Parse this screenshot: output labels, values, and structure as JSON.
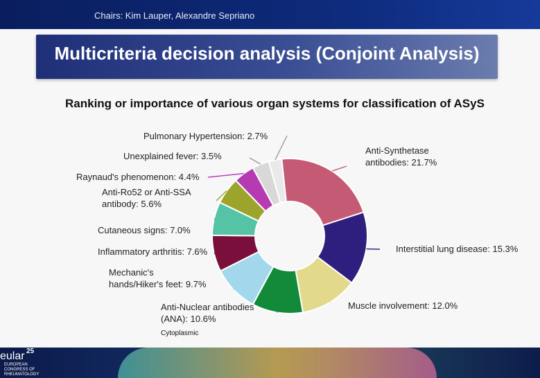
{
  "header": {
    "chairs": "Chairs: Kim Lauper, Alexandre Sepriano"
  },
  "slide": {
    "title": "Multicriteria decision analysis (Conjoint Analysis)",
    "subtitle": "Ranking or importance of various organ systems for classification of ASyS",
    "note": "Cytoplasmic"
  },
  "chart_data": {
    "type": "pie",
    "donut": true,
    "title": "Ranking or importance of various organ systems for classification of ASyS",
    "unit": "%",
    "slices": [
      {
        "label_lines": [
          "Anti-Synthetase",
          "antibodies: 21.7%"
        ],
        "value": 21.7,
        "color": "#c45a73"
      },
      {
        "label_lines": [
          "Interstitial lung disease: 15.3%"
        ],
        "value": 15.3,
        "color": "#2e1f7e"
      },
      {
        "label_lines": [
          "Muscle involvement: 12.0%"
        ],
        "value": 12.0,
        "color": "#e3d98a"
      },
      {
        "label_lines": [
          "Anti-Nuclear antibodies",
          "(ANA): 10.6%"
        ],
        "value": 10.6,
        "color": "#128a3a"
      },
      {
        "label_lines": [
          "Mechanic's",
          "hands/Hiker's feet: 9.7%"
        ],
        "value": 9.7,
        "color": "#a3d8ec"
      },
      {
        "label_lines": [
          "Inflammatory arthritis: 7.6%"
        ],
        "value": 7.6,
        "color": "#7a0f3c"
      },
      {
        "label_lines": [
          "Cutaneous signs: 7.0%"
        ],
        "value": 7.0,
        "color": "#55c4a6"
      },
      {
        "label_lines": [
          "Anti-Ro52 or Anti-SSA",
          "antibody: 5.6%"
        ],
        "value": 5.6,
        "color": "#9ba52b"
      },
      {
        "label_lines": [
          "Raynaud's phenomenon: 4.4%"
        ],
        "value": 4.4,
        "color": "#b63bb2"
      },
      {
        "label_lines": [
          "Unexplained fever: 3.5%"
        ],
        "value": 3.5,
        "color": "#d8d8d8"
      },
      {
        "label_lines": [
          "Pulmonary Hypertension: 2.7%"
        ],
        "value": 2.7,
        "color": "#e9e9e9"
      }
    ]
  },
  "footer": {
    "logo_word": "eular",
    "logo_number": "25",
    "logo_sub": [
      "EUROPEAN",
      "CONGRESS OF",
      "RHEUMATOLOGY"
    ]
  }
}
